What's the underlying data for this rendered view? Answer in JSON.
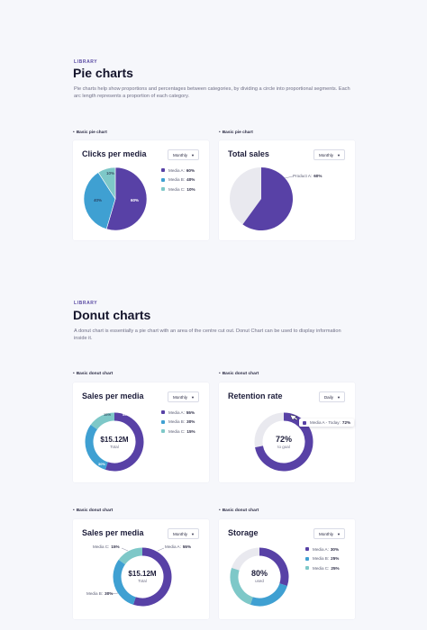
{
  "pie": {
    "kicker": "LIBRARY",
    "title": "Pie charts",
    "desc": "Pie charts help show proportions and percentages between categories, by dividing a circle into proportional segments. Each arc length represents a proportion of each category."
  },
  "donut": {
    "kicker": "LIBRARY",
    "title": "Donut charts",
    "desc": "A donut chart is essentially a pie chart with an area of the centre cut out. Donut Chart can be used to display information inside it."
  },
  "cards": {
    "c1": {
      "label": "Basic pie chart",
      "title": "Clicks per media",
      "dropdown": "Monthly",
      "legend": [
        {
          "name": "Media A:",
          "value": "60%"
        },
        {
          "name": "Media B:",
          "value": "40%"
        },
        {
          "name": "Media C:",
          "value": "10%"
        }
      ]
    },
    "c2": {
      "label": "Basic pie chart",
      "title": "Total sales",
      "dropdown": "Monthly",
      "callout": "Product A:",
      "callout_value": "60%"
    },
    "c3": {
      "label": "Basic donut chart",
      "title": "Sales per media",
      "dropdown": "Monthly",
      "center_value": "$15.12M",
      "center_sub": "Total",
      "legend": [
        {
          "name": "Media A:",
          "value": "55%"
        },
        {
          "name": "Media B:",
          "value": "30%"
        },
        {
          "name": "Media C:",
          "value": "15%"
        }
      ]
    },
    "c4": {
      "label": "Basic donut chart",
      "title": "Retention rate",
      "dropdown": "Daily",
      "center_value": "72%",
      "center_sub": "to goal",
      "tooltip_name": "Media A - Today:",
      "tooltip_value": "72%"
    },
    "c5": {
      "label": "Basic donut chart",
      "title": "Sales per media",
      "dropdown": "Monthly",
      "center_value": "$15.12M",
      "center_sub": "Total",
      "callout_a": "Media A:",
      "callout_a_value": "55%",
      "callout_b": "Media B:",
      "callout_b_value": "30%",
      "callout_c": "Media C:",
      "callout_c_value": "15%"
    },
    "c6": {
      "label": "Basic donut chart",
      "title": "Storage",
      "dropdown": "Monthly",
      "center_value": "80%",
      "center_sub": "used",
      "legend": [
        {
          "name": "Media A:",
          "value": "30%"
        },
        {
          "name": "Media B:",
          "value": "25%"
        },
        {
          "name": "Media C:",
          "value": "25%"
        }
      ]
    }
  },
  "colors": {
    "purple": "#5841a6",
    "blue": "#3fa0d2",
    "teal": "#7ec8c8",
    "grey": "#e9e9ef"
  },
  "chart_data": [
    {
      "type": "pie",
      "title": "Clicks per media",
      "categories": [
        "Media A",
        "Media B",
        "Media C"
      ],
      "values": [
        60,
        40,
        10
      ],
      "data_labels": [
        "60%",
        "40%",
        "10%"
      ]
    },
    {
      "type": "pie",
      "title": "Total sales",
      "categories": [
        "Product A"
      ],
      "values": [
        60
      ]
    },
    {
      "type": "pie",
      "title": "Sales per media",
      "categories": [
        "Media A",
        "Media B",
        "Media C"
      ],
      "values": [
        55,
        30,
        15
      ],
      "data_labels": [
        "55%",
        "30%",
        "15%"
      ]
    },
    {
      "type": "pie",
      "title": "Retention rate",
      "categories": [
        "Media A - Today"
      ],
      "values": [
        72
      ]
    },
    {
      "type": "pie",
      "title": "Sales per media",
      "categories": [
        "Media A",
        "Media B",
        "Media C"
      ],
      "values": [
        55,
        30,
        15
      ]
    },
    {
      "type": "pie",
      "title": "Storage",
      "categories": [
        "Media A",
        "Media B",
        "Media C"
      ],
      "values": [
        30,
        25,
        25
      ]
    }
  ]
}
